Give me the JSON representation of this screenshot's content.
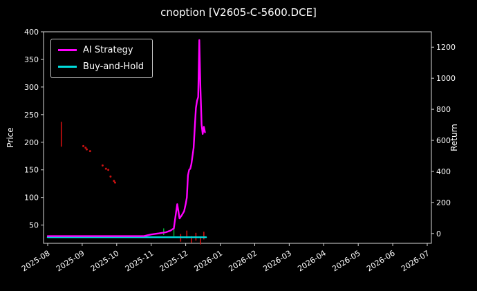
{
  "title": "cnoption [V2605-C-5600.DCE]",
  "axes": {
    "left_label": "Price",
    "right_label": "Return"
  },
  "legend": [
    {
      "label": "AI Strategy",
      "color": "#ff00ff"
    },
    {
      "label": "Buy-and-Hold",
      "color": "#00dddd"
    }
  ],
  "chart_data": {
    "type": "line",
    "title": "cnoption [V2605-C-5600.DCE]",
    "xlabel": "",
    "ylabel_left": "Price",
    "ylabel_right": "Return",
    "grid": false,
    "legend_position": "upper left",
    "x_tick_labels": [
      "2025-08",
      "2025-09",
      "2025-10",
      "2025-11",
      "2025-12",
      "2026-01",
      "2026-02",
      "2026-03",
      "2026-04",
      "2026-05",
      "2026-06",
      "2026-07"
    ],
    "left_ticks": [
      50,
      100,
      150,
      200,
      250,
      300,
      350,
      400
    ],
    "right_ticks": [
      0,
      200,
      400,
      600,
      800,
      1000,
      1200
    ],
    "left_range": [
      17,
      400
    ],
    "right_range": [
      -63,
      1299
    ],
    "x_domain_months": [
      -0.12,
      11.12
    ],
    "series": [
      {
        "name": "AI Strategy",
        "color": "#ff00ff",
        "axis": "left",
        "points": [
          [
            "2025-08-01",
            30
          ],
          [
            "2025-09-01",
            30
          ],
          [
            "2025-10-01",
            30
          ],
          [
            "2025-10-25",
            30
          ],
          [
            "2025-11-01",
            33
          ],
          [
            "2025-11-08",
            35
          ],
          [
            "2025-11-14",
            37
          ],
          [
            "2025-11-18",
            40
          ],
          [
            "2025-11-21",
            44
          ],
          [
            "2025-11-22",
            60
          ],
          [
            "2025-11-24",
            88
          ],
          [
            "2025-11-26",
            62
          ],
          [
            "2025-11-28",
            68
          ],
          [
            "2025-11-30",
            75
          ],
          [
            "2025-12-01",
            88
          ],
          [
            "2025-12-02",
            100
          ],
          [
            "2025-12-03",
            140
          ],
          [
            "2025-12-04",
            150
          ],
          [
            "2025-12-05",
            152
          ],
          [
            "2025-12-06",
            160
          ],
          [
            "2025-12-08",
            190
          ],
          [
            "2025-12-09",
            228
          ],
          [
            "2025-12-10",
            262
          ],
          [
            "2025-12-11",
            275
          ],
          [
            "2025-12-12",
            282
          ],
          [
            "2025-12-13",
            385
          ],
          [
            "2025-12-14",
            300
          ],
          [
            "2025-12-15",
            232
          ],
          [
            "2025-12-16",
            215
          ],
          [
            "2025-12-17",
            228
          ],
          [
            "2025-12-18",
            218
          ]
        ]
      },
      {
        "name": "Buy-and-Hold",
        "color": "#00dddd",
        "axis": "left",
        "points": [
          [
            "2025-08-01",
            28
          ],
          [
            "2025-12-19",
            28
          ]
        ]
      }
    ],
    "scatter": [
      {
        "name": "price-marks-red",
        "color": "#cc1111",
        "points": [
          [
            "2025-09-02",
            193
          ],
          [
            "2025-09-04",
            190
          ],
          [
            "2025-09-05",
            187
          ],
          [
            "2025-09-08",
            184
          ],
          [
            "2025-09-19",
            158
          ],
          [
            "2025-09-22",
            152
          ],
          [
            "2025-09-24",
            150
          ],
          [
            "2025-09-26",
            138
          ],
          [
            "2025-09-29",
            130
          ],
          [
            "2025-09-30",
            127
          ]
        ]
      }
    ],
    "bars": [
      {
        "x": "2025-08-13",
        "y1": 192,
        "y2": 237,
        "color": "#dd1111"
      },
      {
        "x": "2025-11-12",
        "y1": 32,
        "y2": 44,
        "color": "#00aa33"
      },
      {
        "x": "2025-11-21",
        "y1": 30,
        "y2": 48,
        "color": "#00aa33"
      },
      {
        "x": "2025-11-27",
        "y1": 20,
        "y2": 34,
        "color": "#dd1111"
      },
      {
        "x": "2025-12-02",
        "y1": 26,
        "y2": 40,
        "color": "#dd1111"
      },
      {
        "x": "2025-12-06",
        "y1": 18,
        "y2": 30,
        "color": "#dd1111"
      },
      {
        "x": "2025-12-10",
        "y1": 22,
        "y2": 36,
        "color": "#dd1111"
      },
      {
        "x": "2025-12-14",
        "y1": 15,
        "y2": 28,
        "color": "#dd1111"
      },
      {
        "x": "2025-12-17",
        "y1": 24,
        "y2": 38,
        "color": "#dd1111"
      }
    ]
  }
}
